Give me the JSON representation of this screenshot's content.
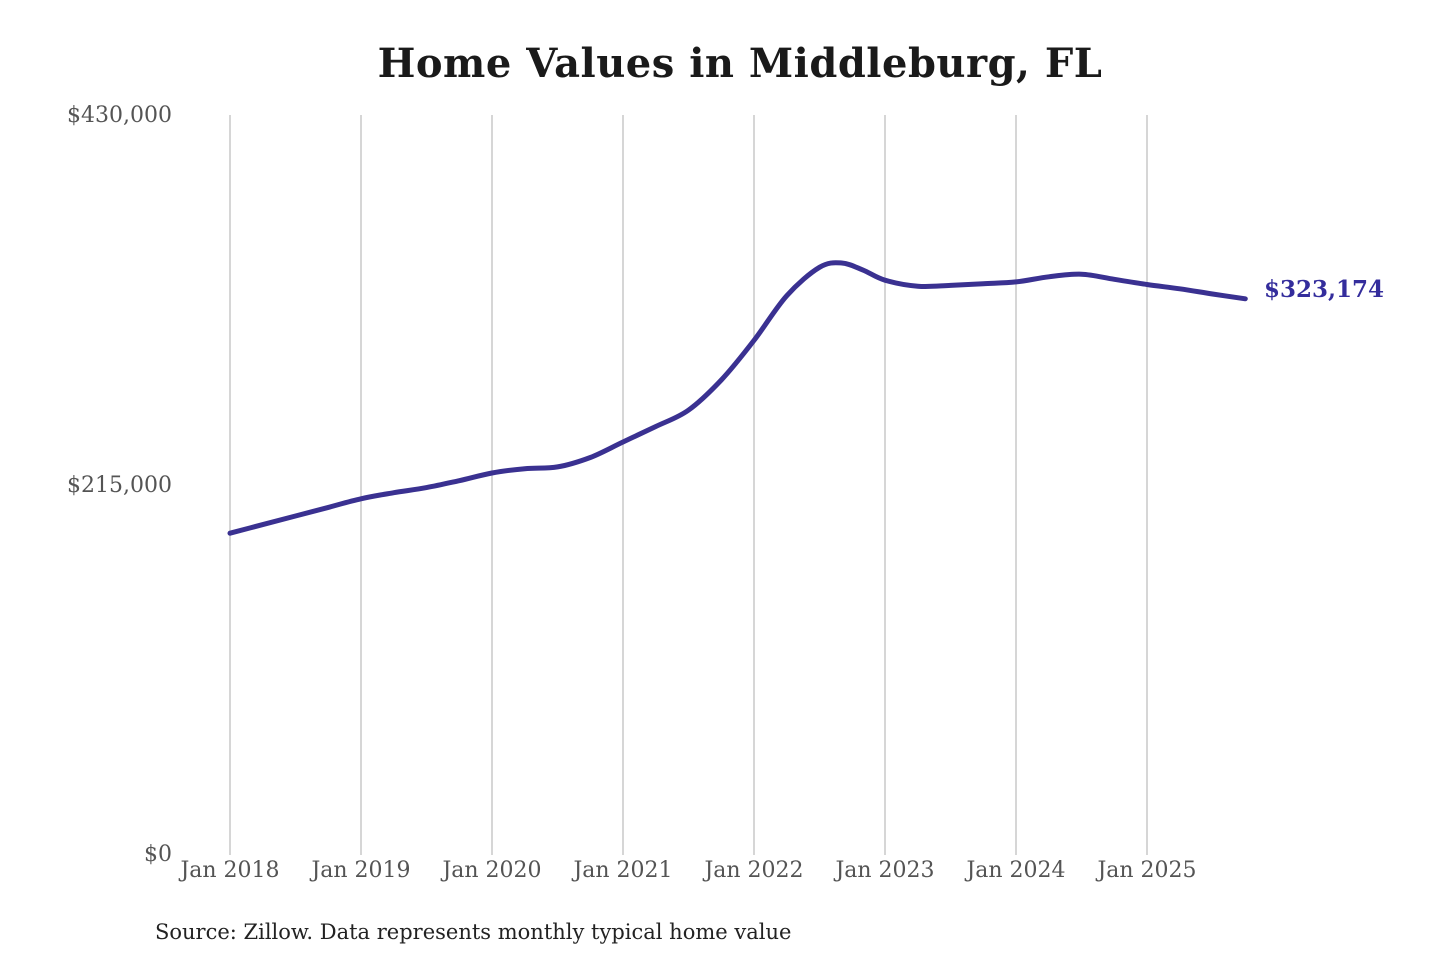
{
  "chart_data": {
    "type": "line",
    "title": "Home Values in Middleburg, FL",
    "xlabel": "",
    "ylabel": "",
    "source_note": "Source: Zillow. Data represents monthly typical home value",
    "final_value": 323174,
    "final_value_label": "$323,174",
    "ylim": [
      0,
      430000
    ],
    "y_tick_values": [
      430000,
      215000,
      0
    ],
    "y_tick_labels": [
      "$430,000",
      "$215,000",
      "$0"
    ],
    "x_tick_labels": [
      "Jan 2018",
      "Jan 2019",
      "Jan 2020",
      "Jan 2021",
      "Jan 2022",
      "Jan 2023",
      "Jan 2024",
      "Jan 2025"
    ],
    "x_range_years": [
      2018.0,
      2025.75
    ],
    "grid": "vertical-only",
    "legend": "none",
    "colors": {
      "line": "#3a3191",
      "grid": "#c9c9c9",
      "title": "#1a1a1a",
      "axis_labels": "#545454",
      "value_label": "#342d9c",
      "source": "#222222",
      "background": "#ffffff"
    },
    "series": [
      {
        "name": "Monthly typical home value",
        "points": [
          {
            "t": 2018.0,
            "v": 187000
          },
          {
            "t": 2018.25,
            "v": 192000
          },
          {
            "t": 2018.5,
            "v": 197000
          },
          {
            "t": 2018.75,
            "v": 202000
          },
          {
            "t": 2019.0,
            "v": 207000
          },
          {
            "t": 2019.25,
            "v": 210500
          },
          {
            "t": 2019.5,
            "v": 213500
          },
          {
            "t": 2019.75,
            "v": 217500
          },
          {
            "t": 2020.0,
            "v": 222000
          },
          {
            "t": 2020.25,
            "v": 224500
          },
          {
            "t": 2020.5,
            "v": 225500
          },
          {
            "t": 2020.75,
            "v": 231000
          },
          {
            "t": 2021.0,
            "v": 240000
          },
          {
            "t": 2021.25,
            "v": 249000
          },
          {
            "t": 2021.5,
            "v": 258500
          },
          {
            "t": 2021.75,
            "v": 276000
          },
          {
            "t": 2022.0,
            "v": 299000
          },
          {
            "t": 2022.25,
            "v": 325000
          },
          {
            "t": 2022.5,
            "v": 341500
          },
          {
            "t": 2022.67,
            "v": 344000
          },
          {
            "t": 2022.83,
            "v": 340000
          },
          {
            "t": 2023.0,
            "v": 334000
          },
          {
            "t": 2023.25,
            "v": 330500
          },
          {
            "t": 2023.5,
            "v": 331000
          },
          {
            "t": 2023.75,
            "v": 332000
          },
          {
            "t": 2024.0,
            "v": 333000
          },
          {
            "t": 2024.25,
            "v": 336000
          },
          {
            "t": 2024.5,
            "v": 337500
          },
          {
            "t": 2024.75,
            "v": 334500
          },
          {
            "t": 2025.0,
            "v": 331500
          },
          {
            "t": 2025.25,
            "v": 329000
          },
          {
            "t": 2025.5,
            "v": 326000
          },
          {
            "t": 2025.75,
            "v": 323174
          }
        ]
      }
    ]
  }
}
